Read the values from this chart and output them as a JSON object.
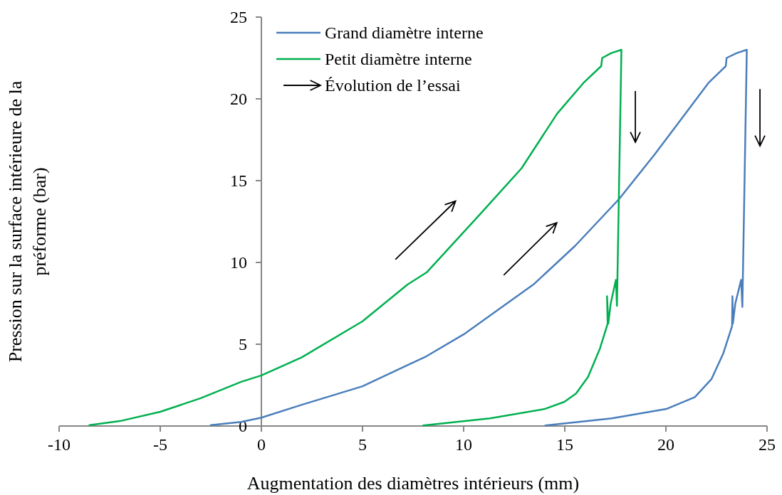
{
  "chart_data": {
    "type": "line",
    "xlabel": "Augmentation des diamètres intérieurs (mm)",
    "ylabel": "Pression sur la surface intérieure de la\npréforme (bar)",
    "xlim": [
      -10,
      25
    ],
    "xticks": [
      -10,
      -5,
      0,
      5,
      10,
      15,
      20,
      25
    ],
    "ylim": [
      0,
      25
    ],
    "yticks": [
      0,
      5,
      10,
      15,
      20,
      25
    ],
    "legend": "top left",
    "grid": false,
    "marker": "none",
    "line_style": "solid",
    "annotations": [
      "Évolution de l’essai"
    ],
    "series": [
      {
        "name": "Grand diamètre interne",
        "color": "#4a7ebb",
        "x": [
          -2.5,
          -1,
          0,
          2,
          5,
          8.17,
          10,
          13.45,
          15.5,
          17.68,
          19.44,
          20.6,
          22.1,
          22.96,
          23.0,
          23.5,
          24.0,
          23.78,
          23.72,
          23.43,
          23.31,
          23.29,
          23.27,
          22.84,
          22.25,
          21.43,
          20.02,
          17.32,
          14.04
        ],
        "values": [
          0.05,
          0.25,
          0.51,
          1.3,
          2.43,
          4.27,
          5.6,
          8.65,
          11,
          13.87,
          16.6,
          18.5,
          20.97,
          22.0,
          22.5,
          22.8,
          23.0,
          7.28,
          8.94,
          7.49,
          6.26,
          7.93,
          6.1,
          4.45,
          2.86,
          1.77,
          1.04,
          0.47,
          0.03
        ]
      },
      {
        "name": "Petit diamètre interne",
        "color": "#00b050",
        "x": [
          -8.5,
          -7,
          -5,
          -3,
          -1,
          0,
          2,
          5,
          7.23,
          8.17,
          10.75,
          12.86,
          14.62,
          15.92,
          16.8,
          16.85,
          17.3,
          17.8,
          17.58,
          17.53,
          17.27,
          17.15,
          17.09,
          17.12,
          16.74,
          16.15,
          15.56,
          14.98,
          14.0,
          11.3,
          8
        ],
        "values": [
          0.05,
          0.3,
          0.87,
          1.7,
          2.7,
          3.09,
          4.2,
          6.4,
          8.65,
          9.39,
          12.86,
          15.75,
          19.09,
          20.97,
          22.0,
          22.5,
          22.8,
          23.0,
          7.35,
          8.94,
          7.49,
          6.26,
          7.93,
          6.26,
          4.74,
          3.0,
          1.99,
          1.48,
          1.04,
          0.47,
          0.03
        ]
      }
    ]
  }
}
